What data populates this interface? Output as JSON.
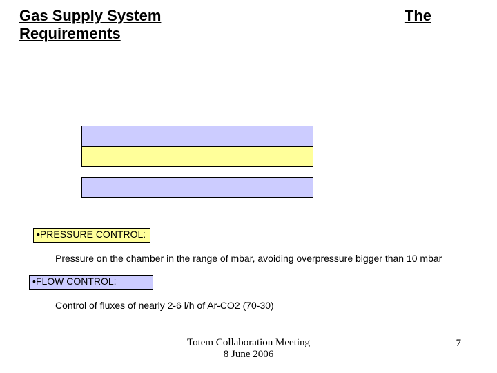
{
  "title_line1_left": "Gas Supply System",
  "title_line1_right": "The",
  "title_line2": "Requirements",
  "boxes": {
    "box1_color": "#ccccff",
    "box2_color": "#ffff9a",
    "box3_color": "#ccccff",
    "border_color": "#000000"
  },
  "section1": {
    "bullet": "•",
    "label": "PRESSURE CONTROL:",
    "label_bg": "#ffff9a",
    "body": "Pressure on the chamber in the range of mbar, avoiding overpressure bigger than 10 mbar"
  },
  "section2": {
    "bullet": "•",
    "label": "FLOW CONTROL:",
    "label_bg": "#ccccff",
    "body": "Control of fluxes of nearly 2-6 l/h of Ar-CO2 (70-30)"
  },
  "footer": {
    "line1": "Totem Collaboration Meeting",
    "line2": "8 June 2006"
  },
  "page_number": "7",
  "colors": {
    "background": "#ffffff",
    "text": "#000000"
  }
}
